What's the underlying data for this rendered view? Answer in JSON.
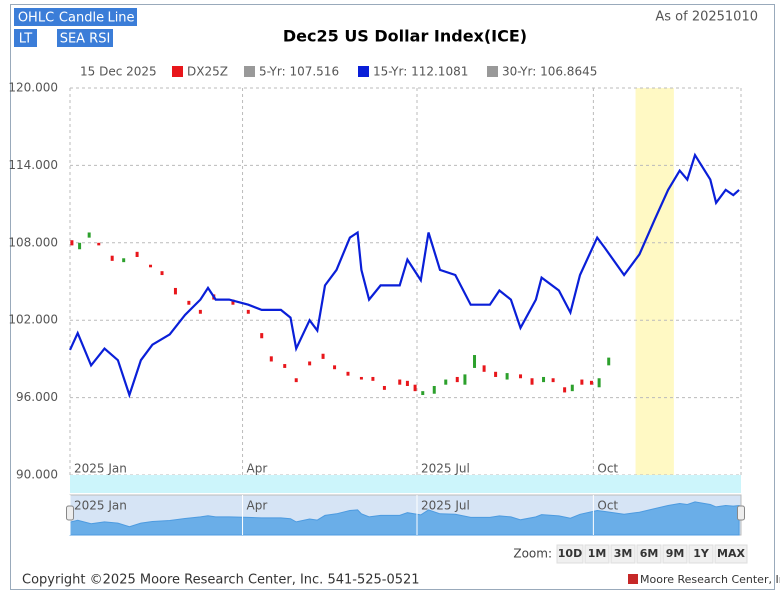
{
  "ui": {
    "buttons": [
      "OHLC",
      "Candle",
      "Line",
      "LT",
      "SEA RSI"
    ],
    "as_of": "As of 20251010",
    "zoom_label": "Zoom:",
    "zoom_buttons": [
      "10D",
      "1M",
      "3M",
      "6M",
      "9M",
      "1Y",
      "MAX"
    ],
    "copyright": "Copyright ©2025 Moore Research Center, Inc. 541-525-0521",
    "brand": "Moore Research Center, Inc."
  },
  "chart_data": {
    "type": "line",
    "title": "Dec25 US Dollar Index(ICE)",
    "legend_date": "15 Dec 2025",
    "xlim": [
      0,
      350
    ],
    "xticks": [
      {
        "value": 0,
        "label": "2025 Jan"
      },
      {
        "value": 90,
        "label": "Apr"
      },
      {
        "value": 181,
        "label": "2025 Jul"
      },
      {
        "value": 273,
        "label": "Oct"
      }
    ],
    "ylim": [
      90,
      120
    ],
    "yticks": [
      {
        "value": 90,
        "label": "90.000"
      },
      {
        "value": 96,
        "label": "96.000"
      },
      {
        "value": 102,
        "label": "102.000"
      },
      {
        "value": 108,
        "label": "108.000"
      },
      {
        "value": 114,
        "label": "114.000"
      },
      {
        "value": 120,
        "label": "120.000"
      }
    ],
    "grid": true,
    "highlight": [
      295,
      315
    ],
    "highlight_color": "#fff9c4",
    "candles": {
      "name": "DX25Z",
      "color": "#e8161b",
      "up_color": "#2ca02c",
      "x": [
        1,
        5,
        10,
        15,
        22,
        28,
        35,
        42,
        48,
        55,
        62,
        68,
        75,
        85,
        93,
        100,
        105,
        112,
        118,
        125,
        132,
        138,
        145,
        152,
        158,
        164,
        172,
        176,
        180,
        184,
        190,
        196,
        202,
        206,
        211,
        216,
        222,
        228,
        235,
        241,
        247,
        252,
        258,
        262,
        267,
        272,
        276,
        281
      ],
      "open": [
        108.2,
        107.5,
        108.4,
        108.0,
        107.0,
        106.5,
        107.3,
        106.3,
        105.8,
        104.5,
        103.5,
        102.8,
        104.0,
        103.6,
        102.8,
        101.0,
        99.2,
        98.6,
        97.5,
        98.8,
        99.4,
        98.5,
        98.0,
        97.6,
        97.6,
        96.9,
        97.4,
        97.3,
        97.0,
        96.2,
        96.3,
        97.0,
        97.6,
        97.0,
        98.3,
        98.5,
        98.0,
        97.4,
        97.8,
        97.5,
        97.2,
        97.5,
        96.8,
        96.5,
        97.4,
        97.3,
        96.8,
        98.5
      ],
      "close": [
        107.8,
        108.0,
        108.8,
        107.8,
        106.6,
        106.8,
        106.9,
        106.1,
        105.5,
        104.0,
        103.2,
        102.5,
        103.6,
        103.2,
        102.5,
        100.6,
        98.8,
        98.3,
        97.2,
        98.5,
        99.0,
        98.2,
        97.7,
        97.4,
        97.3,
        96.6,
        97.0,
        96.9,
        96.5,
        96.5,
        96.9,
        97.4,
        97.2,
        97.8,
        99.3,
        98.0,
        97.6,
        97.9,
        97.5,
        97.0,
        97.6,
        97.2,
        96.4,
        97.0,
        97.0,
        97.0,
        97.5,
        99.1
      ]
    },
    "series": [
      {
        "name": "15-Yr: 112.1081",
        "color": "#0a1fd8",
        "x": [
          0,
          4,
          11,
          18,
          25,
          31,
          37,
          43,
          52,
          60,
          68,
          72,
          76,
          83,
          93,
          100,
          110,
          115,
          118,
          125,
          129,
          133,
          139,
          146,
          150,
          152,
          156,
          162,
          172,
          176,
          183,
          187,
          193,
          201,
          209,
          219,
          224,
          230,
          235,
          243,
          246,
          255,
          261,
          266,
          275,
          279,
          289,
          297,
          305,
          312,
          318,
          322,
          326,
          334,
          337,
          342,
          346,
          349
        ],
        "values": [
          99.7,
          101.0,
          98.5,
          99.8,
          98.9,
          96.2,
          98.9,
          100.1,
          100.9,
          102.4,
          103.6,
          104.5,
          103.6,
          103.6,
          103.2,
          102.8,
          102.8,
          102.2,
          99.8,
          102.0,
          101.2,
          104.7,
          105.9,
          108.4,
          108.8,
          105.9,
          103.6,
          104.7,
          104.7,
          106.7,
          105.1,
          108.8,
          105.9,
          105.5,
          103.2,
          103.2,
          104.3,
          103.6,
          101.4,
          103.6,
          105.3,
          104.3,
          102.6,
          105.5,
          108.4,
          107.6,
          105.5,
          107.1,
          109.8,
          112.1,
          113.6,
          112.9,
          114.8,
          112.9,
          111.1,
          112.1,
          111.7,
          112.1
        ]
      }
    ],
    "hidden_series": [
      {
        "name": "5-Yr: 107.516",
        "color": "#999999"
      },
      {
        "name": "30-Yr: 106.8645",
        "color": "#999999"
      }
    ]
  }
}
